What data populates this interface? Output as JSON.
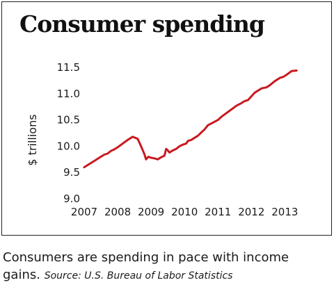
{
  "chart_data": {
    "type": "line",
    "title": "Consumer spending",
    "xlabel": "",
    "ylabel": "$ trillions",
    "xlim": [
      2007,
      2013.45
    ],
    "ylim": [
      9.0,
      11.5
    ],
    "grid": false,
    "legend": "none",
    "xticks": [
      "2007",
      "2008",
      "2009",
      "2010",
      "2011",
      "2012",
      "2013"
    ],
    "yticks": [
      "9.0",
      "9.5",
      "10.0",
      "10.5",
      "11.0",
      "11.5"
    ],
    "line_color": "#c8191e",
    "series": [
      {
        "x": [
          2007.0,
          2007.15,
          2007.3,
          2007.45,
          2007.6,
          2007.7,
          2007.8,
          2007.9,
          2008.0,
          2008.15,
          2008.3,
          2008.45,
          2008.6,
          2008.7,
          2008.8,
          2008.85,
          2008.92,
          2009.0,
          2009.1,
          2009.2,
          2009.3,
          2009.4,
          2009.45,
          2009.5,
          2009.55,
          2009.65,
          2009.75,
          2009.85,
          2009.95,
          2010.05,
          2010.1,
          2010.2,
          2010.3,
          2010.4,
          2010.5,
          2010.6,
          2010.7,
          2010.85,
          2011.0,
          2011.1,
          2011.25,
          2011.4,
          2011.55,
          2011.7,
          2011.8,
          2011.9,
          2012.0,
          2012.1,
          2012.2,
          2012.3,
          2012.45,
          2012.55,
          2012.7,
          2012.85,
          2012.95,
          2013.05,
          2013.2,
          2013.35
        ],
        "y": [
          9.6,
          9.66,
          9.72,
          9.78,
          9.84,
          9.86,
          9.91,
          9.94,
          9.98,
          10.05,
          10.12,
          10.18,
          10.14,
          10.0,
          9.85,
          9.75,
          9.8,
          9.78,
          9.77,
          9.75,
          9.79,
          9.82,
          9.95,
          9.92,
          9.88,
          9.92,
          9.95,
          10.0,
          10.03,
          10.05,
          10.1,
          10.12,
          10.16,
          10.2,
          10.26,
          10.32,
          10.4,
          10.45,
          10.5,
          10.56,
          10.63,
          10.7,
          10.77,
          10.82,
          10.86,
          10.88,
          10.95,
          11.02,
          11.06,
          11.1,
          11.12,
          11.16,
          11.24,
          11.3,
          11.32,
          11.36,
          11.43,
          11.44
        ]
      }
    ]
  },
  "caption": {
    "text": "Consumers are spending in pace with income gains.",
    "source_label": "Source:",
    "source_name": "U.S. Bureau of Labor Statistics"
  }
}
